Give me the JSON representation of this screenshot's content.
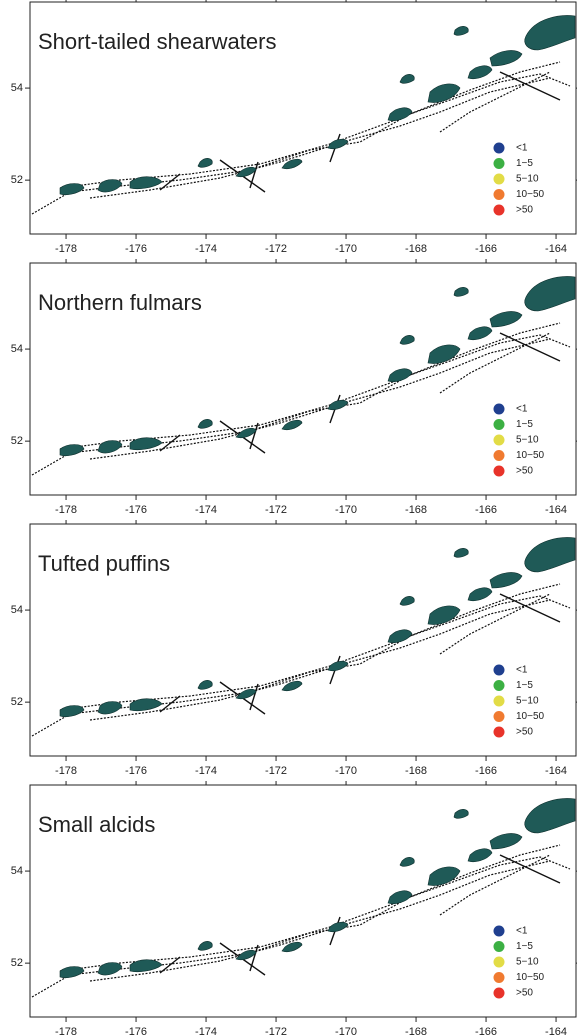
{
  "panels": [
    {
      "title": "Short-tailed shearwaters",
      "xlim": [
        -179.03,
        -163.43
      ],
      "ylim": [
        50.83,
        55.87
      ],
      "xticks": [
        -178,
        -176,
        -174,
        -172,
        -170,
        -168,
        -166,
        -164
      ],
      "yticks": [
        52,
        54
      ],
      "legend": [
        {
          "label": "<1",
          "color": "#1f3f8f"
        },
        {
          "label": "1−5",
          "color": "#3cb043"
        },
        {
          "label": "5−10",
          "color": "#e2dc46"
        },
        {
          "label": "10−50",
          "color": "#f07a30"
        },
        {
          "label": ">50",
          "color": "#e8332a"
        }
      ]
    },
    {
      "title": "Northern fulmars",
      "xlim": [
        -179.03,
        -163.43
      ],
      "ylim": [
        50.83,
        55.87
      ],
      "xticks": [
        -178,
        -176,
        -174,
        -172,
        -170,
        -168,
        -166,
        -164
      ],
      "yticks": [
        52,
        54
      ],
      "legend": [
        {
          "label": "<1",
          "color": "#1f3f8f"
        },
        {
          "label": "1−5",
          "color": "#3cb043"
        },
        {
          "label": "5−10",
          "color": "#e2dc46"
        },
        {
          "label": "10−50",
          "color": "#f07a30"
        },
        {
          "label": ">50",
          "color": "#e8332a"
        }
      ]
    },
    {
      "title": "Tufted puffins",
      "xlim": [
        -179.03,
        -163.43
      ],
      "ylim": [
        50.83,
        55.87
      ],
      "xticks": [
        -178,
        -176,
        -174,
        -172,
        -170,
        -168,
        -166,
        -164
      ],
      "yticks": [
        52,
        54
      ],
      "legend": [
        {
          "label": "<1",
          "color": "#1f3f8f"
        },
        {
          "label": "1−5",
          "color": "#3cb043"
        },
        {
          "label": "5−10",
          "color": "#e2dc46"
        },
        {
          "label": "10−50",
          "color": "#f07a30"
        },
        {
          "label": ">50",
          "color": "#e8332a"
        }
      ]
    },
    {
      "title": "Small alcids",
      "xlim": [
        -179.03,
        -163.43
      ],
      "ylim": [
        50.83,
        55.87
      ],
      "xticks": [
        -178,
        -176,
        -174,
        -172,
        -170,
        -168,
        -166,
        -164
      ],
      "yticks": [
        52,
        54
      ],
      "legend": [
        {
          "label": "<1",
          "color": "#1f3f8f"
        },
        {
          "label": "1−5",
          "color": "#3cb043"
        },
        {
          "label": "5−10",
          "color": "#e2dc46"
        },
        {
          "label": "10−50",
          "color": "#f07a30"
        },
        {
          "label": ">50",
          "color": "#e8332a"
        }
      ]
    }
  ]
}
